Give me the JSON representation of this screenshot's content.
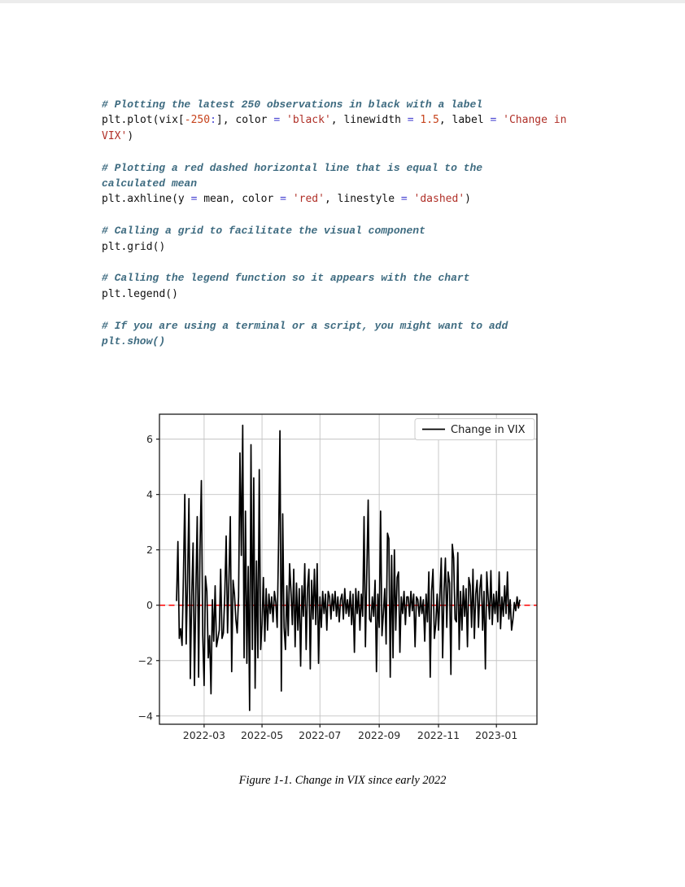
{
  "page": {
    "caption": "Figure 1-1. Change in VIX since early 2022"
  },
  "code": {
    "colors": {
      "comment": "#3E6B80",
      "plain": "#111111",
      "operator": "#4845d2",
      "number": "#c7431c",
      "string": "#b03028"
    },
    "lines": [
      [
        {
          "c": "com",
          "t": "# Plotting the latest 250 observations in black with a label"
        }
      ],
      [
        {
          "c": "pln",
          "t": "plt.plot(vix["
        },
        {
          "c": "num",
          "t": "-250"
        },
        {
          "c": "op",
          "t": ":"
        },
        {
          "c": "pln",
          "t": "], color "
        },
        {
          "c": "op",
          "t": "="
        },
        {
          "c": "pln",
          "t": " "
        },
        {
          "c": "str",
          "t": "'black'"
        },
        {
          "c": "pln",
          "t": ", linewidth "
        },
        {
          "c": "op",
          "t": "="
        },
        {
          "c": "pln",
          "t": " "
        },
        {
          "c": "num",
          "t": "1.5"
        },
        {
          "c": "pln",
          "t": ", label "
        },
        {
          "c": "op",
          "t": "="
        },
        {
          "c": "pln",
          "t": " "
        },
        {
          "c": "str",
          "t": "'Change in"
        }
      ],
      [
        {
          "c": "str",
          "t": "VIX'"
        },
        {
          "c": "pln",
          "t": ")"
        }
      ],
      [],
      [
        {
          "c": "com",
          "t": "# Plotting a red dashed horizontal line that is equal to the"
        }
      ],
      [
        {
          "c": "com",
          "t": "calculated mean"
        }
      ],
      [
        {
          "c": "pln",
          "t": "plt.axhline(y "
        },
        {
          "c": "op",
          "t": "="
        },
        {
          "c": "pln",
          "t": " mean, color "
        },
        {
          "c": "op",
          "t": "="
        },
        {
          "c": "pln",
          "t": " "
        },
        {
          "c": "str",
          "t": "'red'"
        },
        {
          "c": "pln",
          "t": ", linestyle "
        },
        {
          "c": "op",
          "t": "="
        },
        {
          "c": "pln",
          "t": " "
        },
        {
          "c": "str",
          "t": "'dashed'"
        },
        {
          "c": "pln",
          "t": ")"
        }
      ],
      [],
      [
        {
          "c": "com",
          "t": "# Calling a grid to facilitate the visual component"
        }
      ],
      [
        {
          "c": "pln",
          "t": "plt.grid()"
        }
      ],
      [],
      [
        {
          "c": "com",
          "t": "# Calling the legend function so it appears with the chart"
        }
      ],
      [
        {
          "c": "pln",
          "t": "plt.legend()"
        }
      ],
      [],
      [
        {
          "c": "com",
          "t": "# If you are using a terminal or a script, you might want to add"
        }
      ],
      [
        {
          "c": "com",
          "t": "plt.show()"
        }
      ]
    ]
  },
  "chart_data": {
    "type": "line",
    "title": "",
    "xlabel": "",
    "ylabel": "",
    "grid": true,
    "legend_position": "upper right",
    "legend": [
      {
        "label": "Change in VIX",
        "color": "#000000"
      }
    ],
    "ylim": [
      -4.3,
      6.9
    ],
    "y_ticks": [
      -4,
      -2,
      0,
      2,
      4,
      6
    ],
    "x_tick_labels": [
      "2022-03",
      "2022-05",
      "2022-07",
      "2022-09",
      "2022-11",
      "2023-01"
    ],
    "x_tick_indices": [
      20,
      62,
      104,
      147,
      190,
      232
    ],
    "mean_line": {
      "y": 0,
      "color": "#ff0000",
      "style": "dashed"
    },
    "series": [
      {
        "name": "Change in VIX",
        "color": "#000000",
        "linewidth": 1.5,
        "values": [
          0.15,
          2.3,
          -1.2,
          -0.85,
          -1.45,
          1.05,
          4.0,
          -1.4,
          0.9,
          3.85,
          -2.65,
          0.3,
          2.25,
          -2.9,
          0.5,
          3.2,
          -2.6,
          2.0,
          4.5,
          -1.1,
          -2.9,
          1.05,
          0.5,
          -1.9,
          -1.1,
          -3.2,
          0.2,
          -1.3,
          0.7,
          -1.5,
          -1.2,
          -0.9,
          1.3,
          -1.2,
          -1.0,
          0.4,
          2.5,
          -1.0,
          0.9,
          3.2,
          -2.4,
          0.9,
          0.4,
          -0.5,
          -1.0,
          0.3,
          5.5,
          1.8,
          6.5,
          -1.9,
          3.4,
          -2.1,
          1.4,
          -3.8,
          5.8,
          -1.6,
          4.6,
          -3.0,
          1.6,
          -1.9,
          4.9,
          -1.6,
          -0.7,
          1.0,
          -1.3,
          0.6,
          -0.9,
          0.4,
          -0.3,
          0.3,
          -0.6,
          0.5,
          0.1,
          -0.8,
          2.2,
          6.3,
          -3.1,
          3.3,
          -0.8,
          -1.6,
          0.7,
          -1.1,
          1.5,
          0.5,
          -0.7,
          1.3,
          -1.5,
          0.8,
          -0.9,
          0.6,
          -2.2,
          0.7,
          -0.4,
          1.5,
          -1.6,
          0.6,
          1.3,
          -2.3,
          0.9,
          -0.5,
          1.3,
          -0.7,
          1.5,
          -2.1,
          0.3,
          -0.8,
          0.5,
          -0.3,
          0.4,
          -0.9,
          0.5,
          0.3,
          -0.5,
          0.4,
          -0.2,
          0.5,
          -0.4,
          0.3,
          -0.6,
          0.2,
          0.4,
          -0.5,
          0.6,
          -0.3,
          0.2,
          -0.4,
          0.5,
          -0.7,
          0.4,
          -1.7,
          0.6,
          -0.3,
          0.5,
          -0.9,
          0.4,
          -0.4,
          3.2,
          -1.5,
          1.2,
          3.8,
          -0.5,
          -0.6,
          0.3,
          -0.4,
          0.9,
          -2.4,
          0.4,
          -0.8,
          3.4,
          -1.1,
          -0.3,
          0.6,
          -1.4,
          2.6,
          2.4,
          -2.6,
          1.8,
          -1.9,
          2.0,
          -0.9,
          1.0,
          1.2,
          -1.7,
          0.3,
          -0.3,
          0.5,
          -0.7,
          0.3,
          0.3,
          -0.4,
          0.5,
          -0.2,
          0.4,
          -1.5,
          0.3,
          0.2,
          -0.4,
          0.3,
          -0.3,
          0.2,
          -1.3,
          0.4,
          -0.6,
          1.2,
          -2.6,
          0.5,
          1.3,
          -1.2,
          -0.7,
          0.4,
          -0.9,
          0.3,
          1.7,
          -1.9,
          0.5,
          1.7,
          -0.8,
          1.2,
          0.8,
          -2.5,
          2.2,
          1.7,
          -0.5,
          -0.6,
          1.9,
          -1.6,
          0.5,
          -0.9,
          0.7,
          -0.4,
          0.6,
          -1.5,
          1.0,
          0.7,
          -0.8,
          1.3,
          -1.2,
          0.4,
          0.9,
          -0.8,
          0.6,
          1.1,
          -0.9,
          0.5,
          -2.3,
          1.2,
          0.3,
          -0.5,
          1.25,
          -0.7,
          0.4,
          -0.3,
          0.5,
          -0.6,
          1.2,
          -0.85,
          0.3,
          -0.4,
          0.7,
          -0.3,
          1.2,
          -0.5,
          0.2,
          -0.9,
          -0.5,
          0.1,
          -0.2,
          0.3,
          -0.1,
          0.2
        ]
      }
    ]
  }
}
